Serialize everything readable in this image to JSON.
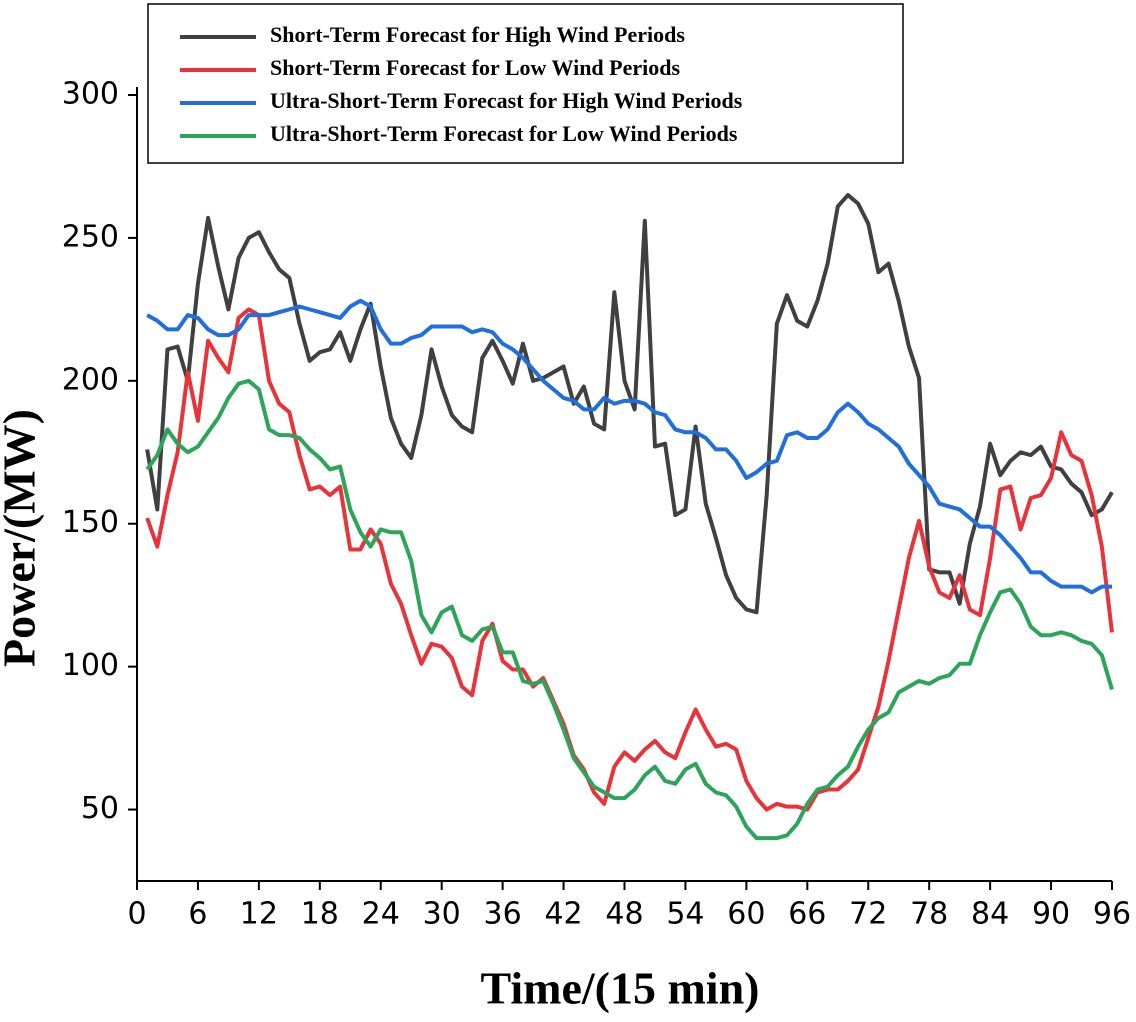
{
  "chart_data": {
    "type": "line",
    "xlabel": "Time/(15 min)",
    "ylabel": "Power/(MW)",
    "x": [
      1,
      2,
      3,
      4,
      5,
      6,
      7,
      8,
      9,
      10,
      11,
      12,
      13,
      14,
      15,
      16,
      17,
      18,
      19,
      20,
      21,
      22,
      23,
      24,
      25,
      26,
      27,
      28,
      29,
      30,
      31,
      32,
      33,
      34,
      35,
      36,
      37,
      38,
      39,
      40,
      41,
      42,
      43,
      44,
      45,
      46,
      47,
      48,
      49,
      50,
      51,
      52,
      53,
      54,
      55,
      56,
      57,
      58,
      59,
      60,
      61,
      62,
      63,
      64,
      65,
      66,
      67,
      68,
      69,
      70,
      71,
      72,
      73,
      74,
      75,
      76,
      77,
      78,
      79,
      80,
      81,
      82,
      83,
      84,
      85,
      86,
      87,
      88,
      89,
      90,
      91,
      92,
      93,
      94,
      95,
      96
    ],
    "series": [
      {
        "name": "Short-Term Forecast for High Wind Periods",
        "color": "#404040",
        "values": [
          176,
          155,
          211,
          212,
          200,
          234,
          257,
          240,
          225,
          243,
          250,
          252,
          245,
          239,
          236,
          220,
          207,
          210,
          211,
          217,
          207,
          218,
          227,
          205,
          187,
          178,
          173,
          188,
          211,
          198,
          188,
          184,
          182,
          208,
          214,
          207,
          199,
          213,
          200,
          201,
          203,
          205,
          192,
          198,
          185,
          183,
          231,
          200,
          190,
          256,
          177,
          178,
          153,
          155,
          184,
          157,
          145,
          132,
          124,
          120,
          119,
          160,
          220,
          230,
          221,
          219,
          228,
          241,
          261,
          265,
          262,
          255,
          238,
          241,
          228,
          212,
          201,
          134,
          133,
          133,
          122,
          143,
          156,
          178,
          167,
          172,
          175,
          174,
          177,
          170,
          169,
          164,
          161,
          153,
          155,
          161
        ]
      },
      {
        "name": "Short-Term Forecast for Low Wind Periods",
        "color": "#e8333a",
        "values": [
          152,
          142,
          160,
          175,
          203,
          186,
          214,
          208,
          203,
          222,
          225,
          223,
          200,
          192,
          189,
          174,
          162,
          163,
          160,
          163,
          141,
          141,
          148,
          143,
          129,
          122,
          111,
          101,
          108,
          107,
          103,
          93,
          90,
          109,
          115,
          102,
          99,
          99,
          93,
          96,
          88,
          80,
          69,
          64,
          56,
          52,
          65,
          70,
          67,
          71,
          74,
          70,
          68,
          77,
          85,
          78,
          72,
          73,
          71,
          60,
          54,
          50,
          52,
          51,
          51,
          50,
          56,
          57,
          57,
          60,
          64,
          75,
          86,
          102,
          120,
          138,
          151,
          135,
          126,
          124,
          132,
          120,
          118,
          138,
          162,
          163,
          148,
          159,
          160,
          166,
          182,
          174,
          172,
          160,
          142,
          112
        ]
      },
      {
        "name": "Ultra-Short-Term Forecast for High Wind Periods",
        "color": "#1f6fdc",
        "values": [
          223,
          221,
          218,
          218,
          223,
          222,
          218,
          216,
          216,
          218,
          223,
          223,
          223,
          224,
          225,
          226,
          225,
          224,
          223,
          222,
          226,
          228,
          226,
          218,
          213,
          213,
          215,
          216,
          219,
          219,
          219,
          219,
          217,
          218,
          217,
          213,
          211,
          208,
          204,
          200,
          197,
          194,
          193,
          190,
          190,
          194,
          192,
          193,
          193,
          192,
          189,
          188,
          183,
          182,
          182,
          180,
          176,
          176,
          172,
          166,
          168,
          171,
          172,
          181,
          182,
          180,
          180,
          183,
          189,
          192,
          189,
          185,
          183,
          180,
          177,
          171,
          167,
          163,
          157,
          156,
          155,
          152,
          149,
          149,
          146,
          142,
          138,
          133,
          133,
          130,
          128,
          128,
          128,
          126,
          128,
          128
        ]
      },
      {
        "name": "Ultra-Short-Term Forecast for Low Wind Periods",
        "color": "#2ca55a",
        "values": [
          169,
          174,
          183,
          178,
          175,
          177,
          182,
          187,
          194,
          199,
          200,
          197,
          183,
          181,
          181,
          180,
          176,
          173,
          169,
          170,
          155,
          147,
          142,
          148,
          147,
          147,
          137,
          118,
          112,
          119,
          121,
          111,
          109,
          113,
          114,
          105,
          105,
          95,
          94,
          95,
          87,
          78,
          68,
          63,
          58,
          56,
          54,
          54,
          57,
          62,
          65,
          60,
          59,
          64,
          66,
          59,
          56,
          55,
          51,
          44,
          40,
          40,
          40,
          41,
          45,
          52,
          57,
          58,
          62,
          65,
          72,
          78,
          82,
          84,
          91,
          93,
          95,
          94,
          96,
          97,
          101,
          101,
          111,
          119,
          126,
          127,
          122,
          114,
          111,
          111,
          112,
          111,
          109,
          108,
          104,
          92
        ]
      }
    ],
    "xlim": [
      0,
      96
    ],
    "xticks": [
      0,
      6,
      12,
      18,
      24,
      30,
      36,
      42,
      48,
      54,
      60,
      66,
      72,
      78,
      84,
      90,
      96
    ],
    "ylim": [
      25,
      300
    ],
    "yticks": [
      50,
      100,
      150,
      200,
      250,
      300
    ],
    "legend": "top"
  }
}
